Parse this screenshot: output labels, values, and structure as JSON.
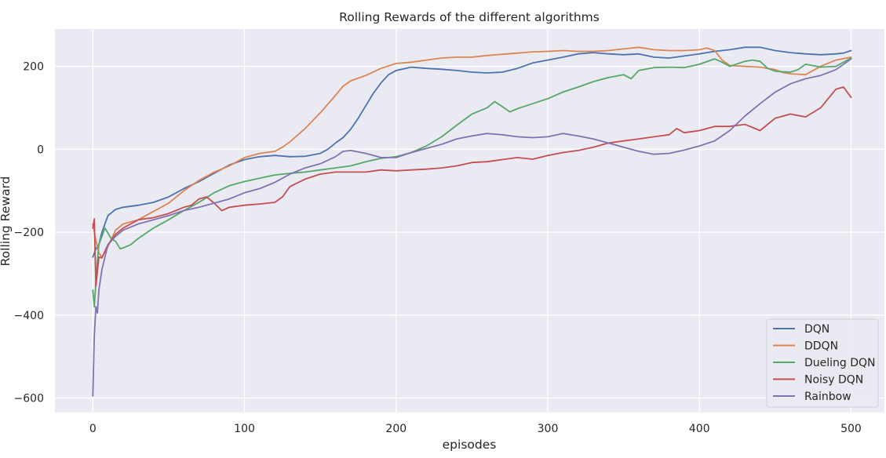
{
  "chart_data": {
    "type": "line",
    "title": "Rolling Rewards of the different algorithms",
    "xlabel": "episodes",
    "ylabel": "Rolling Reward",
    "xlim": [
      -25,
      522
    ],
    "ylim": [
      -635,
      290
    ],
    "xticks": [
      0,
      100,
      200,
      300,
      400,
      500
    ],
    "yticks": [
      -600,
      -400,
      -200,
      0,
      200
    ],
    "grid": true,
    "legend_position": "lower-right",
    "background": "#eaeaf2",
    "series": [
      {
        "name": "DQN",
        "color": "#4c72b0",
        "points": [
          [
            0,
            -260
          ],
          [
            2,
            -240
          ],
          [
            4,
            -230
          ],
          [
            6,
            -200
          ],
          [
            10,
            -160
          ],
          [
            15,
            -145
          ],
          [
            20,
            -140
          ],
          [
            30,
            -135
          ],
          [
            40,
            -128
          ],
          [
            50,
            -115
          ],
          [
            60,
            -95
          ],
          [
            70,
            -78
          ],
          [
            80,
            -58
          ],
          [
            90,
            -38
          ],
          [
            100,
            -25
          ],
          [
            110,
            -18
          ],
          [
            120,
            -15
          ],
          [
            130,
            -18
          ],
          [
            140,
            -17
          ],
          [
            150,
            -10
          ],
          [
            155,
            0
          ],
          [
            160,
            15
          ],
          [
            165,
            28
          ],
          [
            170,
            48
          ],
          [
            175,
            75
          ],
          [
            180,
            105
          ],
          [
            185,
            135
          ],
          [
            190,
            160
          ],
          [
            195,
            180
          ],
          [
            200,
            190
          ],
          [
            210,
            198
          ],
          [
            220,
            195
          ],
          [
            230,
            193
          ],
          [
            240,
            190
          ],
          [
            250,
            186
          ],
          [
            260,
            184
          ],
          [
            270,
            186
          ],
          [
            280,
            195
          ],
          [
            290,
            208
          ],
          [
            300,
            215
          ],
          [
            310,
            222
          ],
          [
            320,
            230
          ],
          [
            330,
            233
          ],
          [
            340,
            230
          ],
          [
            350,
            228
          ],
          [
            360,
            230
          ],
          [
            370,
            222
          ],
          [
            380,
            220
          ],
          [
            390,
            225
          ],
          [
            400,
            230
          ],
          [
            410,
            236
          ],
          [
            420,
            240
          ],
          [
            430,
            246
          ],
          [
            440,
            246
          ],
          [
            450,
            238
          ],
          [
            460,
            233
          ],
          [
            470,
            230
          ],
          [
            480,
            228
          ],
          [
            490,
            230
          ],
          [
            495,
            232
          ],
          [
            500,
            238
          ]
        ]
      },
      {
        "name": "DDQN",
        "color": "#dd8452",
        "points": [
          [
            0,
            -180
          ],
          [
            2,
            -220
          ],
          [
            4,
            -250
          ],
          [
            6,
            -260
          ],
          [
            10,
            -235
          ],
          [
            15,
            -195
          ],
          [
            20,
            -180
          ],
          [
            30,
            -170
          ],
          [
            40,
            -150
          ],
          [
            50,
            -130
          ],
          [
            60,
            -100
          ],
          [
            70,
            -75
          ],
          [
            80,
            -55
          ],
          [
            90,
            -40
          ],
          [
            100,
            -20
          ],
          [
            110,
            -10
          ],
          [
            120,
            -5
          ],
          [
            125,
            5
          ],
          [
            130,
            18
          ],
          [
            140,
            50
          ],
          [
            150,
            88
          ],
          [
            160,
            130
          ],
          [
            165,
            152
          ],
          [
            170,
            165
          ],
          [
            180,
            178
          ],
          [
            190,
            195
          ],
          [
            200,
            207
          ],
          [
            210,
            210
          ],
          [
            220,
            215
          ],
          [
            230,
            220
          ],
          [
            240,
            222
          ],
          [
            250,
            222
          ],
          [
            260,
            226
          ],
          [
            270,
            229
          ],
          [
            280,
            232
          ],
          [
            290,
            235
          ],
          [
            300,
            236
          ],
          [
            310,
            238
          ],
          [
            320,
            236
          ],
          [
            330,
            236
          ],
          [
            340,
            238
          ],
          [
            350,
            242
          ],
          [
            360,
            246
          ],
          [
            370,
            240
          ],
          [
            380,
            238
          ],
          [
            390,
            238
          ],
          [
            400,
            240
          ],
          [
            405,
            244
          ],
          [
            410,
            238
          ],
          [
            415,
            215
          ],
          [
            420,
            202
          ],
          [
            430,
            200
          ],
          [
            440,
            198
          ],
          [
            450,
            192
          ],
          [
            455,
            185
          ],
          [
            460,
            182
          ],
          [
            470,
            180
          ],
          [
            480,
            200
          ],
          [
            490,
            215
          ],
          [
            500,
            222
          ]
        ]
      },
      {
        "name": "Dueling DQN",
        "color": "#55a868",
        "points": [
          [
            0,
            -340
          ],
          [
            1,
            -380
          ],
          [
            2,
            -320
          ],
          [
            3,
            -270
          ],
          [
            4,
            -230
          ],
          [
            6,
            -210
          ],
          [
            8,
            -190
          ],
          [
            12,
            -215
          ],
          [
            15,
            -222
          ],
          [
            18,
            -240
          ],
          [
            20,
            -238
          ],
          [
            25,
            -230
          ],
          [
            30,
            -215
          ],
          [
            40,
            -190
          ],
          [
            50,
            -170
          ],
          [
            60,
            -148
          ],
          [
            70,
            -128
          ],
          [
            80,
            -105
          ],
          [
            90,
            -88
          ],
          [
            100,
            -78
          ],
          [
            110,
            -70
          ],
          [
            120,
            -62
          ],
          [
            130,
            -58
          ],
          [
            140,
            -55
          ],
          [
            150,
            -50
          ],
          [
            160,
            -45
          ],
          [
            170,
            -40
          ],
          [
            180,
            -30
          ],
          [
            190,
            -22
          ],
          [
            200,
            -18
          ],
          [
            210,
            -8
          ],
          [
            220,
            8
          ],
          [
            230,
            30
          ],
          [
            240,
            58
          ],
          [
            250,
            85
          ],
          [
            260,
            100
          ],
          [
            265,
            115
          ],
          [
            270,
            103
          ],
          [
            275,
            90
          ],
          [
            280,
            98
          ],
          [
            290,
            110
          ],
          [
            300,
            122
          ],
          [
            310,
            138
          ],
          [
            320,
            150
          ],
          [
            330,
            163
          ],
          [
            340,
            173
          ],
          [
            350,
            180
          ],
          [
            355,
            170
          ],
          [
            360,
            190
          ],
          [
            370,
            197
          ],
          [
            380,
            198
          ],
          [
            390,
            197
          ],
          [
            400,
            205
          ],
          [
            410,
            218
          ],
          [
            415,
            210
          ],
          [
            420,
            200
          ],
          [
            430,
            212
          ],
          [
            435,
            215
          ],
          [
            440,
            212
          ],
          [
            445,
            195
          ],
          [
            450,
            188
          ],
          [
            460,
            186
          ],
          [
            465,
            192
          ],
          [
            470,
            205
          ],
          [
            480,
            198
          ],
          [
            490,
            200
          ],
          [
            500,
            220
          ]
        ]
      },
      {
        "name": "Noisy DQN",
        "color": "#c44e52",
        "points": [
          [
            0,
            -190
          ],
          [
            1,
            -168
          ],
          [
            2,
            -330
          ],
          [
            4,
            -260
          ],
          [
            6,
            -262
          ],
          [
            10,
            -230
          ],
          [
            15,
            -205
          ],
          [
            20,
            -190
          ],
          [
            30,
            -170
          ],
          [
            40,
            -165
          ],
          [
            50,
            -155
          ],
          [
            60,
            -140
          ],
          [
            65,
            -135
          ],
          [
            70,
            -120
          ],
          [
            75,
            -115
          ],
          [
            80,
            -130
          ],
          [
            85,
            -148
          ],
          [
            90,
            -140
          ],
          [
            100,
            -135
          ],
          [
            110,
            -132
          ],
          [
            120,
            -128
          ],
          [
            125,
            -115
          ],
          [
            130,
            -90
          ],
          [
            140,
            -72
          ],
          [
            150,
            -60
          ],
          [
            160,
            -55
          ],
          [
            170,
            -55
          ],
          [
            180,
            -55
          ],
          [
            190,
            -50
          ],
          [
            200,
            -52
          ],
          [
            210,
            -50
          ],
          [
            220,
            -48
          ],
          [
            230,
            -45
          ],
          [
            240,
            -40
          ],
          [
            250,
            -32
          ],
          [
            260,
            -30
          ],
          [
            270,
            -25
          ],
          [
            280,
            -20
          ],
          [
            290,
            -24
          ],
          [
            300,
            -15
          ],
          [
            310,
            -8
          ],
          [
            320,
            -3
          ],
          [
            330,
            5
          ],
          [
            340,
            15
          ],
          [
            350,
            20
          ],
          [
            360,
            25
          ],
          [
            370,
            30
          ],
          [
            380,
            35
          ],
          [
            385,
            50
          ],
          [
            390,
            40
          ],
          [
            400,
            45
          ],
          [
            410,
            55
          ],
          [
            420,
            55
          ],
          [
            430,
            60
          ],
          [
            440,
            45
          ],
          [
            450,
            75
          ],
          [
            460,
            85
          ],
          [
            470,
            78
          ],
          [
            480,
            100
          ],
          [
            490,
            145
          ],
          [
            495,
            150
          ],
          [
            500,
            125
          ]
        ]
      },
      {
        "name": "Rainbow",
        "color": "#8172b3",
        "points": [
          [
            0,
            -595
          ],
          [
            1,
            -450
          ],
          [
            2,
            -380
          ],
          [
            3,
            -395
          ],
          [
            4,
            -340
          ],
          [
            6,
            -290
          ],
          [
            10,
            -230
          ],
          [
            15,
            -210
          ],
          [
            20,
            -195
          ],
          [
            30,
            -180
          ],
          [
            40,
            -170
          ],
          [
            50,
            -160
          ],
          [
            60,
            -148
          ],
          [
            70,
            -140
          ],
          [
            80,
            -130
          ],
          [
            90,
            -120
          ],
          [
            100,
            -105
          ],
          [
            110,
            -95
          ],
          [
            120,
            -80
          ],
          [
            130,
            -60
          ],
          [
            140,
            -45
          ],
          [
            150,
            -35
          ],
          [
            160,
            -18
          ],
          [
            165,
            -5
          ],
          [
            170,
            -3
          ],
          [
            180,
            -10
          ],
          [
            190,
            -20
          ],
          [
            200,
            -20
          ],
          [
            210,
            -8
          ],
          [
            220,
            2
          ],
          [
            230,
            12
          ],
          [
            240,
            25
          ],
          [
            250,
            32
          ],
          [
            260,
            38
          ],
          [
            270,
            35
          ],
          [
            280,
            30
          ],
          [
            290,
            28
          ],
          [
            300,
            30
          ],
          [
            310,
            38
          ],
          [
            320,
            32
          ],
          [
            330,
            25
          ],
          [
            340,
            15
          ],
          [
            350,
            5
          ],
          [
            360,
            -5
          ],
          [
            370,
            -12
          ],
          [
            380,
            -10
          ],
          [
            390,
            -2
          ],
          [
            400,
            8
          ],
          [
            410,
            20
          ],
          [
            420,
            45
          ],
          [
            430,
            80
          ],
          [
            440,
            110
          ],
          [
            450,
            138
          ],
          [
            460,
            158
          ],
          [
            470,
            170
          ],
          [
            480,
            178
          ],
          [
            490,
            192
          ],
          [
            500,
            218
          ]
        ]
      }
    ]
  }
}
